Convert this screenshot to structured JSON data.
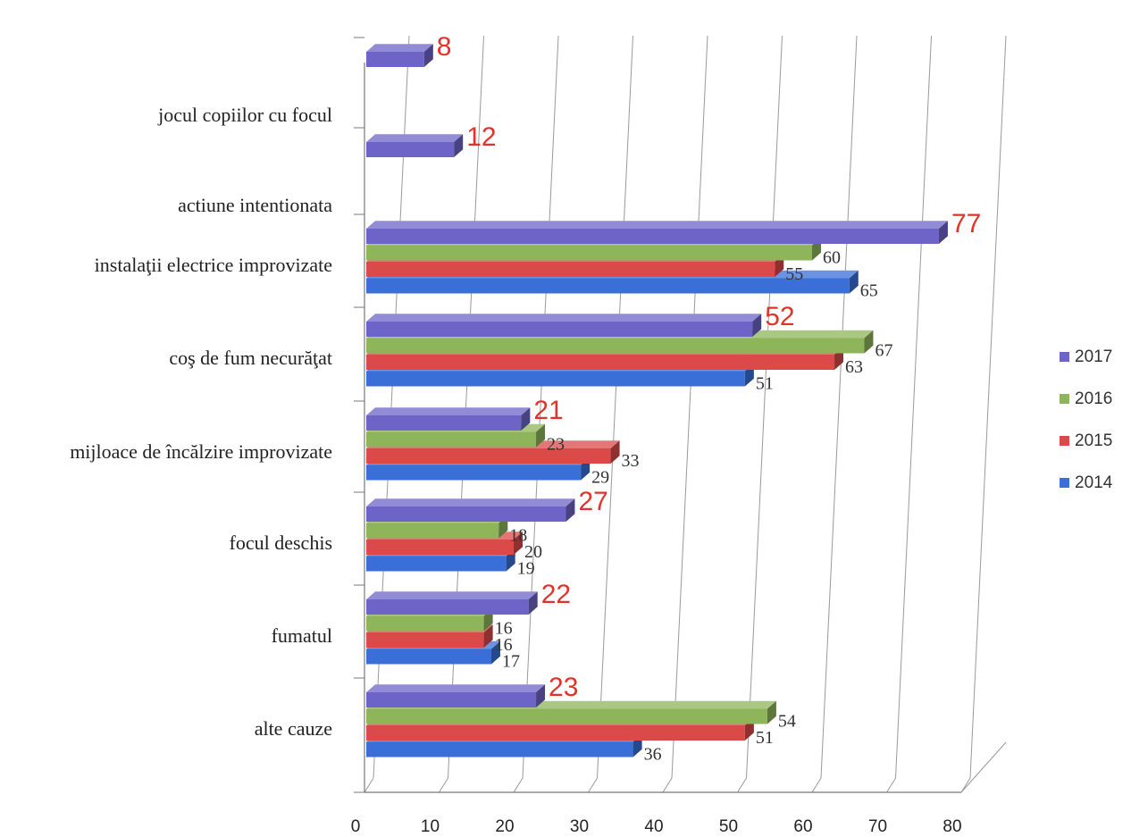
{
  "chart_data": {
    "type": "bar",
    "orientation": "horizontal",
    "style": "3d",
    "categories": [
      "alte cauze",
      "fumatul",
      "focul deschis",
      "mijloace de încălzire improvizate",
      "coş de fum necurăţat",
      "instalaţii electrice improvizate",
      "actiune intentionata",
      "jocul copiilor cu focul"
    ],
    "series": [
      {
        "name": "2014",
        "color": "#3a6fd8",
        "values": [
          36,
          17,
          19,
          29,
          51,
          65,
          null,
          null
        ]
      },
      {
        "name": "2015",
        "color": "#d94a48",
        "values": [
          51,
          16,
          20,
          33,
          63,
          55,
          null,
          null
        ]
      },
      {
        "name": "2016",
        "color": "#8fb55a",
        "values": [
          54,
          16,
          18,
          23,
          67,
          60,
          null,
          null
        ]
      },
      {
        "name": "2017",
        "color": "#6e64c8",
        "values": [
          23,
          22,
          27,
          21,
          52,
          77,
          12,
          8
        ]
      }
    ],
    "highlight_series": "2017",
    "highlight_color": "#e2332b",
    "xlim": [
      0,
      80
    ],
    "xticks": [
      0,
      10,
      20,
      30,
      40,
      50,
      60,
      70,
      80
    ],
    "grid": true,
    "legend": {
      "position": "right",
      "order": [
        "2017",
        "2016",
        "2015",
        "2014"
      ]
    },
    "title": "",
    "xlabel": "",
    "ylabel": ""
  }
}
